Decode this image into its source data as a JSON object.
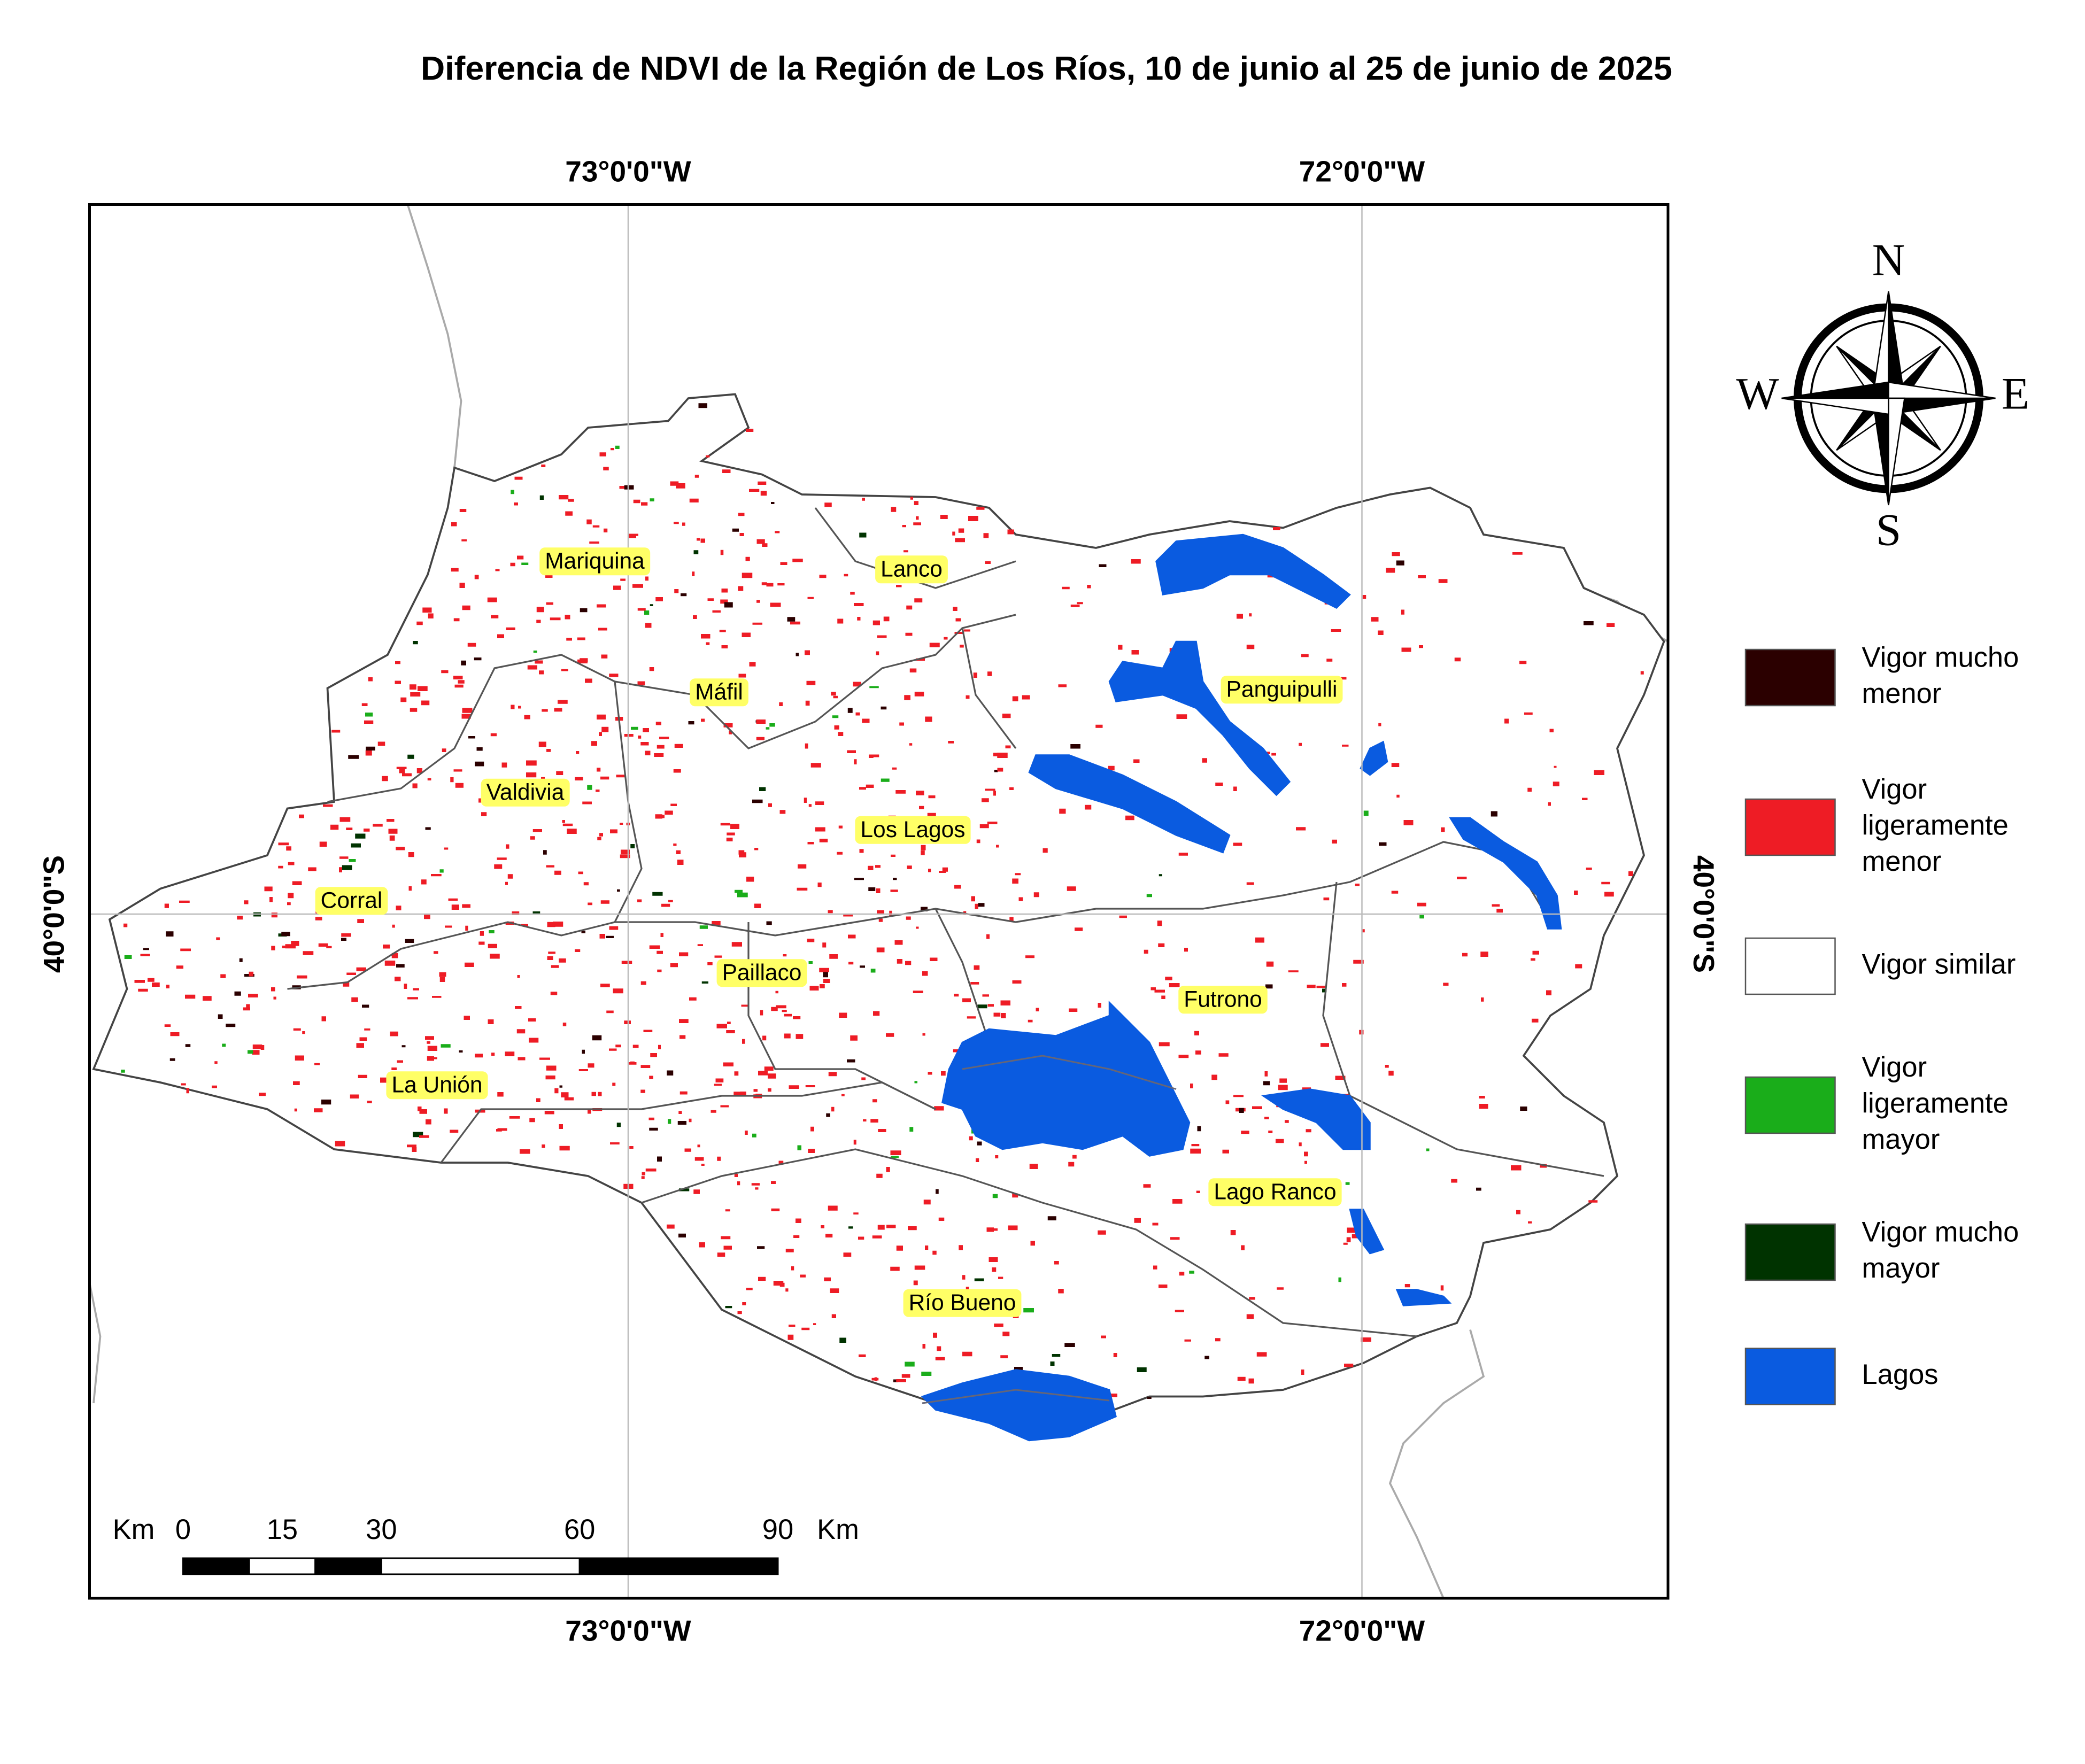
{
  "title": "Diferencia de NDVI de la Región de Los Ríos, 10 de junio al 25 de junio de 2025",
  "graticule": {
    "top": [
      "73°0'0\"W",
      "72°0'0\"W"
    ],
    "bottom": [
      "73°0'0\"W",
      "72°0'0\"W"
    ],
    "left": "40°0'0\"S",
    "right": "40°0'0\"S"
  },
  "places": [
    "Mariquina",
    "Lanco",
    "Máfil",
    "Panguipulli",
    "Valdivia",
    "Los Lagos",
    "Corral",
    "Paillaco",
    "Futrono",
    "La Unión",
    "Lago Ranco",
    "Río Bueno"
  ],
  "compass": {
    "north": "N",
    "south": "S",
    "east": "E",
    "west": "W"
  },
  "legend": [
    {
      "lines": [
        "Vigor mucho",
        "menor"
      ],
      "color": "#2b0000"
    },
    {
      "lines": [
        "Vigor",
        "ligeramente",
        "menor"
      ],
      "color": "#ee1c25"
    },
    {
      "lines": [
        "Vigor similar"
      ],
      "color": "#ffffff"
    },
    {
      "lines": [
        "Vigor",
        "ligeramente",
        "mayor"
      ],
      "color": "#1aad1a"
    },
    {
      "lines": [
        "Vigor mucho",
        "mayor"
      ],
      "color": "#003300"
    },
    {
      "lines": [
        "Lagos"
      ],
      "color": "#0a5be0"
    }
  ],
  "scale_bar": {
    "unit": "Km",
    "ticks": [
      0,
      15,
      30,
      60,
      90
    ]
  }
}
